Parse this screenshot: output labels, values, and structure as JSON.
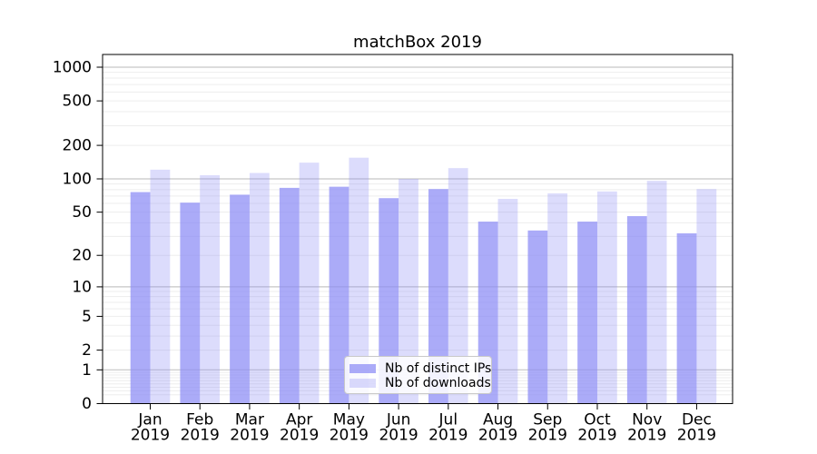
{
  "chart": {
    "colors": {
      "bar_base": "#8c8cf5",
      "grid_major": "#c6c6c6",
      "grid_minor": "#ededed",
      "axis": "#000000",
      "tick_label": "#000000",
      "legend_border": "#c9c9c9"
    }
  },
  "chart_data": {
    "type": "bar",
    "title": "matchBox 2019",
    "x_categories": [
      "Jan",
      "Feb",
      "Mar",
      "Apr",
      "May",
      "Jun",
      "Jul",
      "Aug",
      "Sep",
      "Oct",
      "Nov",
      "Dec"
    ],
    "x_year": "2019",
    "series": [
      {
        "name": "Nb of distinct IPs",
        "color": "#8c8cf5",
        "opacity": 0.73,
        "values": [
          76,
          61,
          72,
          83,
          85,
          67,
          81,
          41,
          34,
          41,
          46,
          32
        ]
      },
      {
        "name": "Nb of downloads",
        "color": "#8c8cf5",
        "opacity": 0.3,
        "values": [
          121,
          108,
          113,
          140,
          155,
          100,
          125,
          66,
          74,
          77,
          96,
          81
        ]
      }
    ],
    "yscale": "symlog",
    "ylim": [
      0,
      1000
    ],
    "yticks": [
      0,
      1,
      2,
      5,
      10,
      20,
      50,
      100,
      200,
      500,
      1000
    ],
    "grid": "on",
    "legend_position": "lower center"
  }
}
